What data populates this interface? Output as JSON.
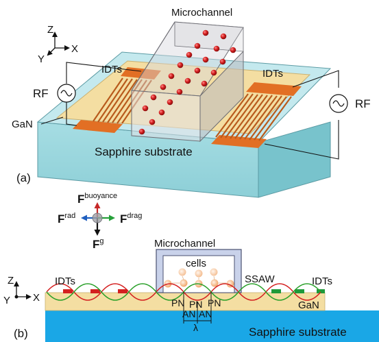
{
  "panel_a": {
    "label": "(a)",
    "microchannel": "Microchannel",
    "idts_left": "IDTs",
    "idts_right": "IDTs",
    "rf_left": "RF",
    "rf_right": "RF",
    "gan": "GaN",
    "substrate": "Sapphire substrate",
    "axes": {
      "z": "Z",
      "y": "Y",
      "x": "X"
    }
  },
  "forces": {
    "f_letter": "F",
    "buoyance": "buoyance",
    "rad": "rad",
    "drag": "drag",
    "g": "g"
  },
  "panel_b": {
    "label": "(b)",
    "microchannel": "Microchannel",
    "cells": "cells",
    "ssaw": "SSAW",
    "idts_left": "IDTs",
    "idts_right": "IDTs",
    "gan": "GaN",
    "pn": "PN",
    "an": "AN",
    "lambda": "λ",
    "substrate": "Sapphire substrate",
    "axes": {
      "z": "Z",
      "y": "Y",
      "x": "X"
    }
  },
  "colors": {
    "substrate_top": "#bfe7ec",
    "substrate_front": "#96d6dd",
    "gan_layer": "#f5dfa0",
    "idt_orange": "#e5752a",
    "particle_red": "#c81e1e",
    "sapphire_blue": "#1aa7e6",
    "idt_green": "#1f9a3a",
    "wave_red": "#d42020",
    "wave_green": "#2aa02a"
  }
}
